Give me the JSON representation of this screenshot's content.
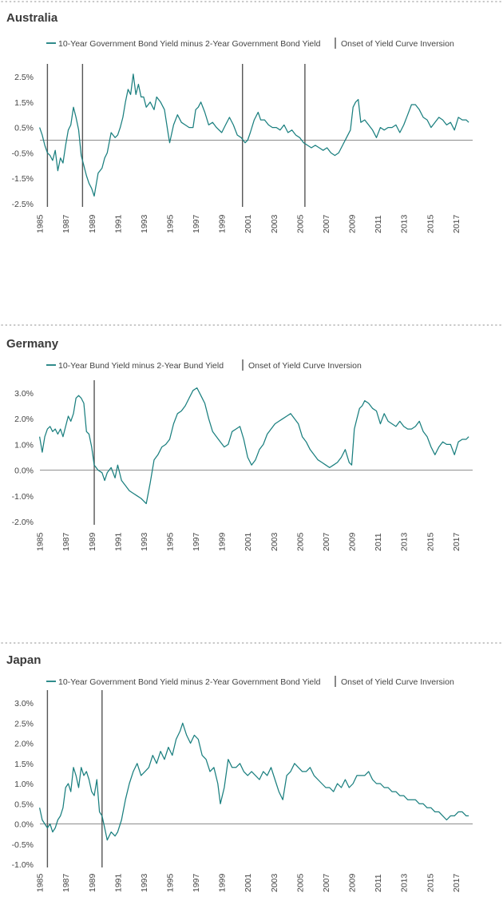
{
  "chart_data": [
    {
      "type": "line",
      "title": "Australia",
      "series": [
        {
          "name": "10-Year Government Bond Yield minus 2-Year Government Bond Yield",
          "x": [
            1985.0,
            1985.2,
            1985.4,
            1985.6,
            1985.8,
            1986.0,
            1986.2,
            1986.4,
            1986.6,
            1986.8,
            1987.0,
            1987.2,
            1987.4,
            1987.6,
            1987.8,
            1988.0,
            1988.2,
            1988.4,
            1988.6,
            1988.8,
            1989.0,
            1989.2,
            1989.5,
            1989.8,
            1990.0,
            1990.2,
            1990.5,
            1990.8,
            1991.0,
            1991.2,
            1991.4,
            1991.6,
            1991.8,
            1992.0,
            1992.2,
            1992.4,
            1992.6,
            1992.8,
            1993.0,
            1993.2,
            1993.5,
            1993.8,
            1994.0,
            1994.3,
            1994.6,
            1994.9,
            1995.0,
            1995.3,
            1995.6,
            1995.9,
            1996.2,
            1996.5,
            1996.8,
            1997.0,
            1997.2,
            1997.4,
            1997.7,
            1998.0,
            1998.3,
            1998.6,
            1999.0,
            1999.3,
            1999.6,
            1999.9,
            2000.2,
            2000.5,
            2000.8,
            2001.0,
            2001.2,
            2001.5,
            2001.8,
            2002.0,
            2002.3,
            2002.6,
            2002.9,
            2003.2,
            2003.5,
            2003.8,
            2004.1,
            2004.4,
            2004.7,
            2005.0,
            2005.3,
            2005.6,
            2005.9,
            2006.2,
            2006.5,
            2006.8,
            2007.1,
            2007.4,
            2007.7,
            2008.0,
            2008.3,
            2008.6,
            2008.9,
            2009.1,
            2009.3,
            2009.5,
            2009.7,
            2010.0,
            2010.3,
            2010.6,
            2010.9,
            2011.2,
            2011.5,
            2011.8,
            2012.1,
            2012.4,
            2012.7,
            2013.0,
            2013.3,
            2013.6,
            2013.9,
            2014.2,
            2014.5,
            2014.8,
            2015.1,
            2015.4,
            2015.7,
            2016.0,
            2016.3,
            2016.6,
            2016.9,
            2017.2,
            2017.5,
            2017.8,
            2018.0
          ],
          "y": [
            0.5,
            0.2,
            -0.2,
            -0.5,
            -0.6,
            -0.8,
            -0.4,
            -1.2,
            -0.7,
            -0.9,
            -0.2,
            0.4,
            0.6,
            1.3,
            0.9,
            0.4,
            -0.6,
            -1.0,
            -1.4,
            -1.7,
            -1.9,
            -2.2,
            -1.3,
            -1.1,
            -0.7,
            -0.5,
            0.3,
            0.1,
            0.2,
            0.5,
            0.9,
            1.5,
            2.0,
            1.8,
            2.6,
            1.8,
            2.2,
            1.7,
            1.7,
            1.3,
            1.5,
            1.2,
            1.7,
            1.5,
            1.2,
            0.2,
            -0.1,
            0.6,
            1.0,
            0.7,
            0.6,
            0.5,
            0.5,
            1.2,
            1.3,
            1.5,
            1.1,
            0.6,
            0.7,
            0.5,
            0.3,
            0.6,
            0.9,
            0.6,
            0.2,
            0.1,
            -0.1,
            0.0,
            0.3,
            0.8,
            1.1,
            0.8,
            0.8,
            0.6,
            0.5,
            0.5,
            0.4,
            0.6,
            0.3,
            0.4,
            0.2,
            0.1,
            -0.1,
            -0.2,
            -0.3,
            -0.2,
            -0.3,
            -0.4,
            -0.3,
            -0.5,
            -0.6,
            -0.5,
            -0.2,
            0.1,
            0.4,
            1.3,
            1.5,
            1.6,
            0.7,
            0.8,
            0.6,
            0.4,
            0.1,
            0.5,
            0.4,
            0.5,
            0.5,
            0.6,
            0.3,
            0.6,
            1.0,
            1.4,
            1.4,
            1.2,
            0.9,
            0.8,
            0.5,
            0.7,
            0.9,
            0.8,
            0.6,
            0.7,
            0.4,
            0.9,
            0.8,
            0.8,
            0.7
          ]
        }
      ],
      "onset_years": [
        1985.6,
        1988.3,
        2000.6,
        2005.4
      ],
      "onset_label": "Onset of Yield Curve Inversion",
      "yticks": [
        2.5,
        1.5,
        0.5,
        -0.5,
        -1.5,
        -2.5
      ],
      "ytick_labels": [
        "2.5%",
        "1.5%",
        "0.5%",
        "-0.5%",
        "-1.5%",
        "-2.5%"
      ],
      "ylim": [
        -2.5,
        2.5
      ],
      "baseline": 0.0,
      "xticks": [
        "1985",
        "1987",
        "1989",
        "1991",
        "1993",
        "1995",
        "1997",
        "1999",
        "2001",
        "2003",
        "2005",
        "2007",
        "2009",
        "2011",
        "2013",
        "2015",
        "2017"
      ],
      "xlim": [
        1984.9,
        2018.3
      ],
      "legend_position": "top",
      "xlabel": "",
      "ylabel": ""
    },
    {
      "type": "line",
      "title": "Germany",
      "series": [
        {
          "name": "10-Year Bund Yield minus 2-Year Bund Yield",
          "x": [
            1985.0,
            1985.2,
            1985.4,
            1985.6,
            1985.8,
            1986.0,
            1986.2,
            1986.4,
            1986.6,
            1986.8,
            1987.0,
            1987.2,
            1987.4,
            1987.6,
            1987.8,
            1988.0,
            1988.2,
            1988.4,
            1988.6,
            1988.8,
            1989.0,
            1989.2,
            1989.5,
            1989.8,
            1990.0,
            1990.2,
            1990.5,
            1990.8,
            1991.0,
            1991.3,
            1991.6,
            1991.9,
            1992.2,
            1992.5,
            1992.8,
            1993.0,
            1993.2,
            1993.5,
            1993.8,
            1994.1,
            1994.4,
            1994.7,
            1995.0,
            1995.3,
            1995.6,
            1995.9,
            1996.2,
            1996.5,
            1996.8,
            1997.1,
            1997.4,
            1997.7,
            1998.0,
            1998.3,
            1998.6,
            1998.9,
            1999.2,
            1999.5,
            1999.8,
            2000.1,
            2000.4,
            2000.7,
            2001.0,
            2001.3,
            2001.6,
            2001.9,
            2002.2,
            2002.5,
            2002.8,
            2003.1,
            2003.4,
            2003.7,
            2004.0,
            2004.3,
            2004.6,
            2004.9,
            2005.2,
            2005.5,
            2005.8,
            2006.1,
            2006.4,
            2006.7,
            2007.0,
            2007.3,
            2007.6,
            2007.9,
            2008.2,
            2008.5,
            2008.8,
            2009.0,
            2009.2,
            2009.4,
            2009.6,
            2009.8,
            2010.0,
            2010.3,
            2010.6,
            2010.9,
            2011.2,
            2011.5,
            2011.8,
            2012.1,
            2012.4,
            2012.7,
            2013.0,
            2013.3,
            2013.6,
            2013.9,
            2014.2,
            2014.5,
            2014.8,
            2015.1,
            2015.4,
            2015.7,
            2016.0,
            2016.3,
            2016.6,
            2016.9,
            2017.2,
            2017.5,
            2017.8,
            2018.0
          ],
          "y": [
            1.3,
            0.7,
            1.3,
            1.6,
            1.7,
            1.5,
            1.6,
            1.4,
            1.6,
            1.3,
            1.7,
            2.1,
            1.9,
            2.2,
            2.8,
            2.9,
            2.8,
            2.6,
            1.5,
            1.4,
            0.9,
            0.2,
            0.0,
            -0.1,
            -0.4,
            -0.1,
            0.1,
            -0.3,
            0.2,
            -0.4,
            -0.6,
            -0.8,
            -0.9,
            -1.0,
            -1.1,
            -1.2,
            -1.3,
            -0.5,
            0.4,
            0.6,
            0.9,
            1.0,
            1.2,
            1.8,
            2.2,
            2.3,
            2.5,
            2.8,
            3.1,
            3.2,
            2.9,
            2.6,
            2.0,
            1.5,
            1.3,
            1.1,
            0.9,
            1.0,
            1.5,
            1.6,
            1.7,
            1.2,
            0.5,
            0.2,
            0.4,
            0.8,
            1.0,
            1.4,
            1.6,
            1.8,
            1.9,
            2.0,
            2.1,
            2.2,
            2.0,
            1.8,
            1.3,
            1.1,
            0.8,
            0.6,
            0.4,
            0.3,
            0.2,
            0.1,
            0.2,
            0.3,
            0.5,
            0.8,
            0.3,
            0.2,
            1.6,
            2.0,
            2.4,
            2.5,
            2.7,
            2.6,
            2.4,
            2.3,
            1.8,
            2.2,
            1.9,
            1.8,
            1.7,
            1.9,
            1.7,
            1.6,
            1.6,
            1.7,
            1.9,
            1.5,
            1.3,
            0.9,
            0.6,
            0.9,
            1.1,
            1.0,
            1.0,
            0.6,
            1.1,
            1.2,
            1.2,
            1.3
          ]
        }
      ],
      "onset_years": [
        1989.2
      ],
      "onset_label": "Onset of Yield Curve Inversion",
      "yticks": [
        3.0,
        2.0,
        1.0,
        0.0,
        -1.0,
        -2.0
      ],
      "ytick_labels": [
        "3.0%",
        "2.0%",
        "1.0%",
        "0.0%",
        "-1.0%",
        "-2.0%"
      ],
      "ylim": [
        -2.0,
        3.0
      ],
      "baseline": 0.0,
      "xticks": [
        "1985",
        "1987",
        "1989",
        "1991",
        "1993",
        "1995",
        "1997",
        "1999",
        "2001",
        "2003",
        "2005",
        "2007",
        "2009",
        "2011",
        "2013",
        "2015",
        "2017"
      ],
      "xlim": [
        1984.9,
        2018.3
      ],
      "legend_position": "top",
      "xlabel": "",
      "ylabel": ""
    },
    {
      "type": "line",
      "title": "Japan",
      "series": [
        {
          "name": "10-Year Government Bond Yield minus 2-Year Government Bond Yield",
          "x": [
            1985.0,
            1985.2,
            1985.4,
            1985.6,
            1985.8,
            1986.0,
            1986.2,
            1986.4,
            1986.6,
            1986.8,
            1987.0,
            1987.2,
            1987.4,
            1987.6,
            1987.8,
            1988.0,
            1988.2,
            1988.4,
            1988.6,
            1988.8,
            1989.0,
            1989.2,
            1989.4,
            1989.6,
            1989.8,
            1990.0,
            1990.2,
            1990.5,
            1990.8,
            1991.0,
            1991.3,
            1991.6,
            1991.9,
            1992.2,
            1992.5,
            1992.8,
            1993.1,
            1993.4,
            1993.7,
            1994.0,
            1994.3,
            1994.6,
            1994.9,
            1995.2,
            1995.5,
            1995.8,
            1996.0,
            1996.3,
            1996.6,
            1996.9,
            1997.2,
            1997.5,
            1997.8,
            1998.1,
            1998.4,
            1998.7,
            1998.9,
            1999.2,
            1999.5,
            1999.8,
            2000.1,
            2000.4,
            2000.7,
            2001.0,
            2001.3,
            2001.6,
            2001.9,
            2002.2,
            2002.5,
            2002.8,
            2003.1,
            2003.4,
            2003.7,
            2004.0,
            2004.3,
            2004.6,
            2004.9,
            2005.2,
            2005.5,
            2005.8,
            2006.1,
            2006.4,
            2006.7,
            2007.0,
            2007.3,
            2007.6,
            2007.9,
            2008.2,
            2008.5,
            2008.8,
            2009.1,
            2009.4,
            2009.7,
            2010.0,
            2010.3,
            2010.6,
            2010.9,
            2011.2,
            2011.5,
            2011.8,
            2012.1,
            2012.4,
            2012.7,
            2013.0,
            2013.3,
            2013.6,
            2013.9,
            2014.2,
            2014.5,
            2014.8,
            2015.1,
            2015.4,
            2015.7,
            2016.0,
            2016.3,
            2016.6,
            2016.9,
            2017.2,
            2017.5,
            2017.8,
            2018.0
          ],
          "y": [
            0.4,
            0.1,
            0.0,
            -0.1,
            0.0,
            -0.2,
            -0.1,
            0.1,
            0.2,
            0.4,
            0.9,
            1.0,
            0.8,
            1.4,
            1.2,
            0.9,
            1.4,
            1.2,
            1.3,
            1.1,
            0.8,
            0.7,
            1.1,
            0.3,
            0.2,
            -0.1,
            -0.4,
            -0.2,
            -0.3,
            -0.2,
            0.1,
            0.6,
            1.0,
            1.3,
            1.5,
            1.2,
            1.3,
            1.4,
            1.7,
            1.5,
            1.8,
            1.6,
            1.9,
            1.7,
            2.1,
            2.3,
            2.5,
            2.2,
            2.0,
            2.2,
            2.1,
            1.7,
            1.6,
            1.3,
            1.4,
            1.0,
            0.5,
            0.9,
            1.6,
            1.4,
            1.4,
            1.5,
            1.3,
            1.2,
            1.3,
            1.2,
            1.1,
            1.3,
            1.2,
            1.4,
            1.1,
            0.8,
            0.6,
            1.2,
            1.3,
            1.5,
            1.4,
            1.3,
            1.3,
            1.4,
            1.2,
            1.1,
            1.0,
            0.9,
            0.9,
            0.8,
            1.0,
            0.9,
            1.1,
            0.9,
            1.0,
            1.2,
            1.2,
            1.2,
            1.3,
            1.1,
            1.0,
            1.0,
            0.9,
            0.9,
            0.8,
            0.8,
            0.7,
            0.7,
            0.6,
            0.6,
            0.6,
            0.5,
            0.5,
            0.4,
            0.4,
            0.3,
            0.3,
            0.2,
            0.1,
            0.2,
            0.2,
            0.3,
            0.3,
            0.2,
            0.2
          ]
        }
      ],
      "onset_years": [
        1985.6,
        1989.8
      ],
      "onset_label": "Onset of Yield Curve Inversion",
      "yticks": [
        3.0,
        2.5,
        2.0,
        1.5,
        1.0,
        0.5,
        0.0,
        -0.5,
        -1.0
      ],
      "ytick_labels": [
        "3.0%",
        "2.5%",
        "2.0%",
        "1.5%",
        "1.0%",
        "0.5%",
        "0.0%",
        "-0.5%",
        "-1.0%"
      ],
      "ylim": [
        -1.0,
        3.0
      ],
      "baseline": 0.0,
      "xticks": [
        "1985",
        "1987",
        "1989",
        "1991",
        "1993",
        "1995",
        "1997",
        "1999",
        "2001",
        "2003",
        "2005",
        "2007",
        "2009",
        "2011",
        "2013",
        "2015",
        "2017"
      ],
      "xlim": [
        1984.9,
        2018.3
      ],
      "legend_position": "top",
      "xlabel": "",
      "ylabel": ""
    }
  ]
}
